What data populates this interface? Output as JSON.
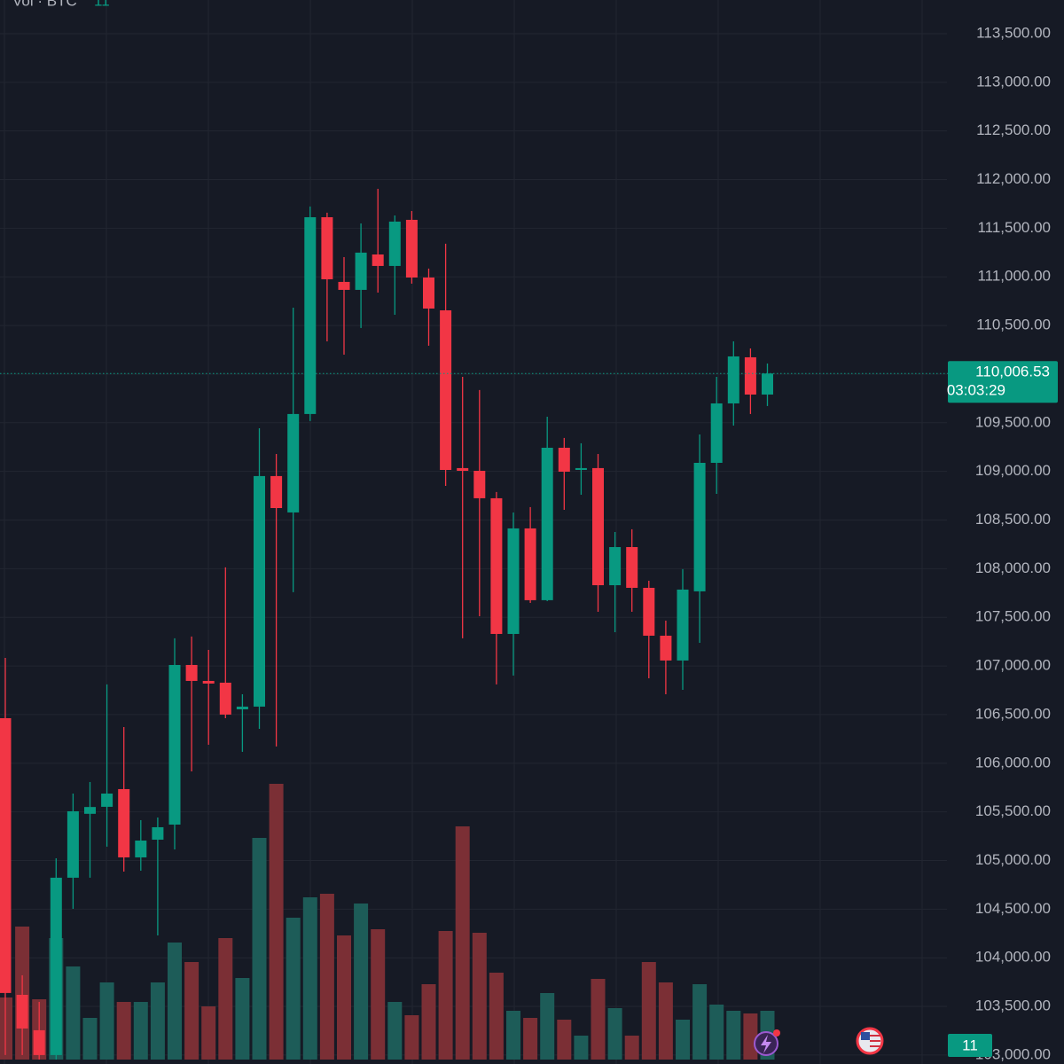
{
  "chart_data": {
    "type": "candlestick",
    "volume_title": "Vol · BTC",
    "open": [
      106463,
      103619,
      103255,
      103000,
      104823,
      105480,
      105552,
      105734,
      105032,
      105214,
      105369,
      107010,
      106846,
      106828,
      106554,
      106582,
      108952,
      108578,
      109590,
      111613,
      110948,
      110866,
      111230,
      111112,
      111586,
      110993,
      110656,
      109034,
      109006,
      108724,
      107329,
      108414,
      107676,
      109243,
      109015,
      109034,
      107830,
      108222,
      107803,
      107311,
      107056,
      107767,
      109088,
      109699,
      110173,
      109790
    ],
    "high": [
      107083,
      103820,
      103546,
      105023,
      105688,
      105807,
      106810,
      106372,
      105415,
      105442,
      107284,
      107302,
      107165,
      108013,
      106709,
      109444,
      109179,
      110683,
      111723,
      111659,
      111203,
      111549,
      111905,
      111631,
      111677,
      111085,
      111340,
      109972,
      109836,
      108788,
      108578,
      108633,
      109562,
      109344,
      109289,
      109179,
      108377,
      108405,
      107876,
      107466,
      107995,
      109380,
      109972,
      110337,
      110264,
      110109
    ],
    "low": [
      103000,
      103000,
      102954,
      102954,
      104503,
      104823,
      105142,
      104886,
      104895,
      104230,
      105114,
      105916,
      106190,
      106463,
      106117,
      106354,
      106172,
      107758,
      109517,
      110337,
      110200,
      110474,
      110838,
      110610,
      110930,
      110292,
      108851,
      107284,
      107511,
      106810,
      106901,
      107648,
      107666,
      108605,
      108760,
      107557,
      107347,
      107557,
      106873,
      106709,
      106755,
      107238,
      108769,
      109471,
      109590,
      109672
    ],
    "close": [
      103638,
      103273,
      103000,
      104823,
      105506,
      105550,
      105688,
      105032,
      105205,
      105342,
      107010,
      106846,
      106819,
      106500,
      106582,
      108952,
      108623,
      109590,
      111613,
      110975,
      110866,
      111249,
      111112,
      111568,
      110993,
      110674,
      109015,
      109006,
      108724,
      107329,
      108414,
      107676,
      109243,
      108997,
      109034,
      107830,
      108222,
      107803,
      107311,
      107056,
      107785,
      109088,
      109699,
      110182,
      109790,
      110006.53
    ],
    "volume": [
      14,
      30,
      13.6,
      27.4,
      21,
      9.4,
      17.4,
      13,
      13,
      17.4,
      26.4,
      22,
      12,
      27.4,
      18.4,
      50,
      62.2,
      32,
      36.6,
      37.4,
      28,
      35.2,
      29.4,
      13,
      10,
      17,
      29,
      52.6,
      28.6,
      19.6,
      11,
      9.4,
      15,
      9,
      5.4,
      18.2,
      11.6,
      5.4,
      22,
      17.4,
      9,
      17,
      12.4,
      11,
      10.4,
      11
    ],
    "up_color": "#089981",
    "down_color": "#f23645",
    "up_volume_color": "#1d5c58",
    "down_volume_color": "#7b2f35",
    "ylim": [
      102908,
      113846
    ],
    "yticks": [
      {
        "value": 103000,
        "label": "103,000.00"
      },
      {
        "value": 103500,
        "label": "103,500.00"
      },
      {
        "value": 104000,
        "label": "104,000.00"
      },
      {
        "value": 104500,
        "label": "104,500.00"
      },
      {
        "value": 105000,
        "label": "105,000.00"
      },
      {
        "value": 105500,
        "label": "105,500.00"
      },
      {
        "value": 106000,
        "label": "106,000.00"
      },
      {
        "value": 106500,
        "label": "106,500.00"
      },
      {
        "value": 107000,
        "label": "107,000.00"
      },
      {
        "value": 107500,
        "label": "107,500.00"
      },
      {
        "value": 108000,
        "label": "108,000.00"
      },
      {
        "value": 108500,
        "label": "108,500.00"
      },
      {
        "value": 109000,
        "label": "109,000.00"
      },
      {
        "value": 109500,
        "label": "109,500.00"
      },
      {
        "value": 110000,
        "label": "110,000.00"
      },
      {
        "value": 110500,
        "label": "110,500.00"
      },
      {
        "value": 111000,
        "label": "111,000.00"
      },
      {
        "value": 111500,
        "label": "111,500.00"
      },
      {
        "value": 112000,
        "label": "112,000.00"
      },
      {
        "value": 112500,
        "label": "112,500.00"
      },
      {
        "value": 113000,
        "label": "113,000.00"
      },
      {
        "value": 113500,
        "label": "113,500.00"
      }
    ],
    "grid": true,
    "price_label": {
      "value": 110006.53,
      "label": "110,006.53"
    },
    "countdown": "03:03:29"
  }
}
